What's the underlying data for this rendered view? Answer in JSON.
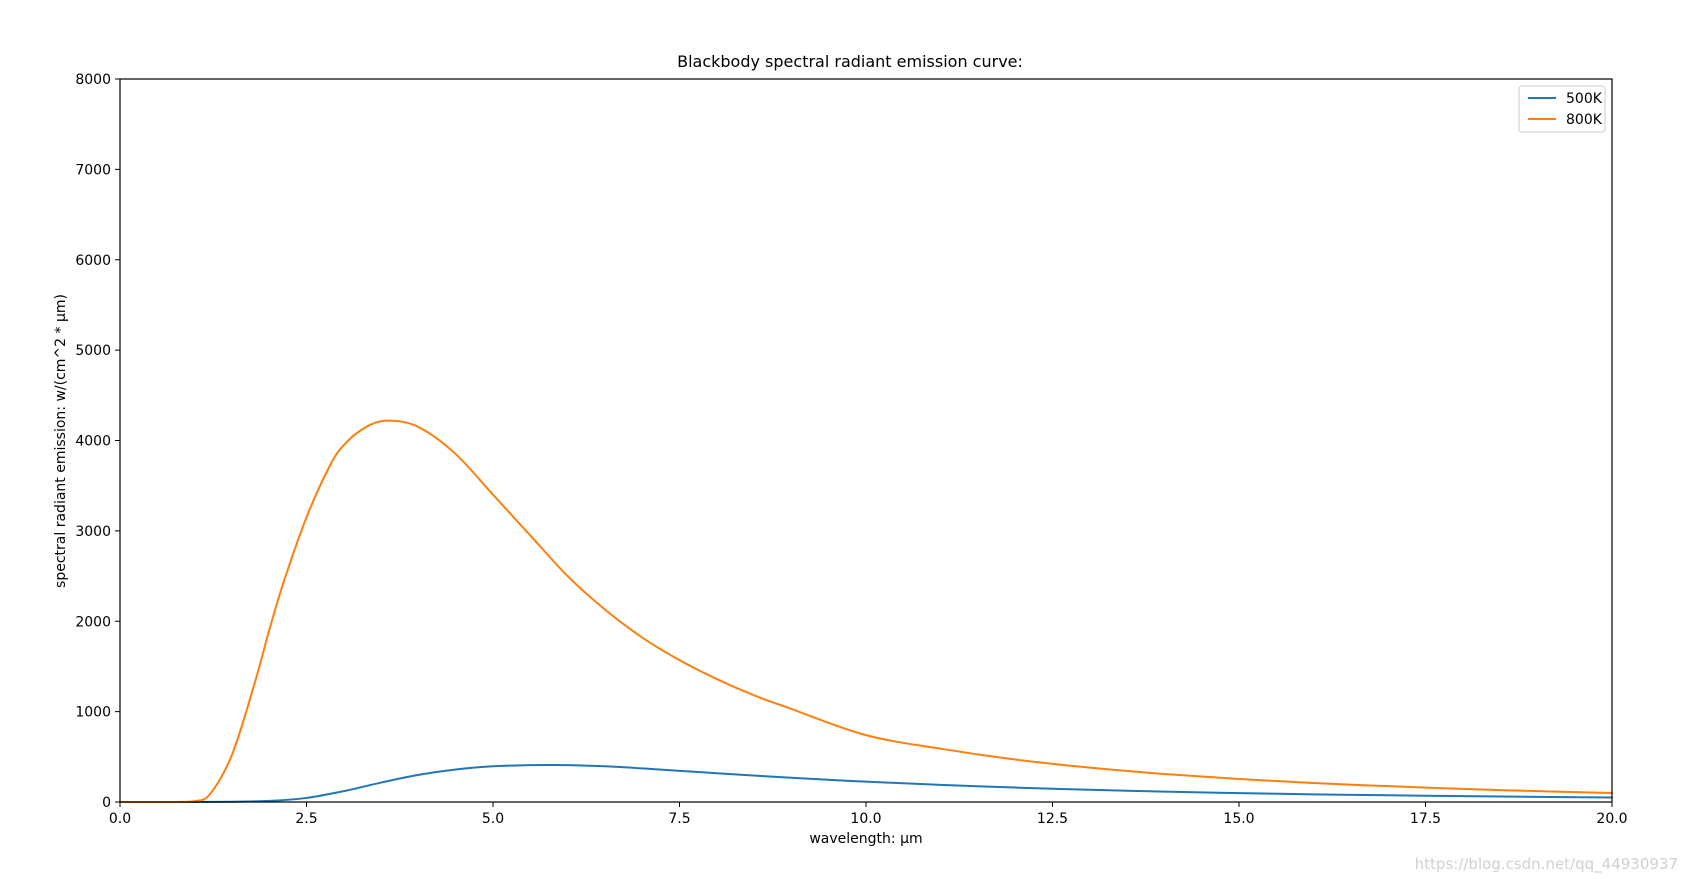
{
  "chart_data": {
    "type": "line",
    "title": "Blackbody spectral radiant emission curve:",
    "xlabel": "wavelength: μm",
    "ylabel": "spectral radiant emission: w/(cm^2 * μm)",
    "xlim": [
      0,
      20
    ],
    "ylim": [
      0,
      8000
    ],
    "xticks": [
      0.0,
      2.5,
      5.0,
      7.5,
      10.0,
      12.5,
      15.0,
      17.5,
      20.0
    ],
    "xtick_labels": [
      "0.0",
      "2.5",
      "5.0",
      "7.5",
      "10.0",
      "12.5",
      "15.0",
      "17.5",
      "20.0"
    ],
    "yticks": [
      0,
      1000,
      2000,
      3000,
      4000,
      5000,
      6000,
      7000,
      8000
    ],
    "ytick_labels": [
      "0",
      "1000",
      "2000",
      "3000",
      "4000",
      "5000",
      "6000",
      "7000",
      "8000"
    ],
    "grid": false,
    "legend_position": "top-right",
    "series": [
      {
        "name": "500K",
        "color": "#1f77b4",
        "x": [
          0.5,
          1.0,
          1.5,
          2.0,
          2.5,
          3.0,
          3.5,
          4.0,
          4.5,
          5.0,
          5.5,
          5.8,
          6.0,
          6.5,
          7.0,
          7.5,
          8.0,
          9.0,
          10.0,
          11.0,
          12.0,
          13.0,
          14.0,
          15.0,
          16.0,
          17.0,
          18.0,
          19.0,
          20.0
        ],
        "values": [
          0,
          0,
          3,
          12,
          45,
          120,
          215,
          300,
          360,
          395,
          408,
          410,
          408,
          395,
          372,
          345,
          318,
          268,
          225,
          190,
          160,
          135,
          115,
          98,
          85,
          74,
          65,
          57,
          50
        ]
      },
      {
        "name": "800K",
        "color": "#ff7f0e",
        "x": [
          0.5,
          0.8,
          1.0,
          1.2,
          1.5,
          1.8,
          2.0,
          2.2,
          2.5,
          2.8,
          3.0,
          3.3,
          3.6,
          4.0,
          4.5,
          5.0,
          5.5,
          6.0,
          6.5,
          7.0,
          7.5,
          8.0,
          8.5,
          9.0,
          10.0,
          11.0,
          12.0,
          13.0,
          14.0,
          15.0,
          16.0,
          17.0,
          18.0,
          19.0,
          20.0
        ],
        "values": [
          0,
          0,
          10,
          80,
          520,
          1300,
          1900,
          2450,
          3150,
          3700,
          3950,
          4150,
          4220,
          4150,
          3850,
          3400,
          2950,
          2500,
          2130,
          1820,
          1570,
          1360,
          1180,
          1030,
          740,
          590,
          470,
          380,
          310,
          255,
          210,
          175,
          145,
          120,
          100
        ]
      }
    ]
  },
  "watermark": "https://blog.csdn.net/qq_44930937"
}
